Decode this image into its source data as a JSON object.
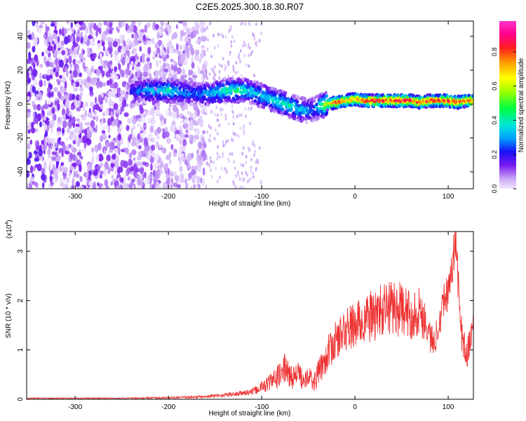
{
  "figure_title": "C2E5.2025.300.18.30.R07",
  "chart_data": [
    {
      "type": "heatmap",
      "title": "C2E5.2025.300.18.30.R07",
      "xlabel": "Height of straight line (km)",
      "ylabel": "Frequency (Hz)",
      "xlim": [
        -352,
        127
      ],
      "ylim": [
        -50,
        49
      ],
      "xticks": [
        -300,
        -200,
        -100,
        0,
        100
      ],
      "yticks": [
        -40,
        -20,
        0,
        20,
        40
      ],
      "colorbar": {
        "label": "Normalized spectral amplitude",
        "range": [
          0.0,
          0.98
        ],
        "ticks": [
          0.0,
          0.2,
          0.4,
          0.6,
          0.8
        ],
        "colors": [
          "#f2e8ff",
          "#c9a6f5",
          "#7a19f0",
          "#1a10f5",
          "#00a0ff",
          "#00e6d8",
          "#00ff40",
          "#9fff00",
          "#ffff00",
          "#ffa000",
          "#ff2020",
          "#ff0088",
          "#ff33cc"
        ]
      },
      "noise_region": {
        "x": [
          -352,
          -160
        ],
        "y": [
          -50,
          49
        ]
      },
      "sparse_region": {
        "x": [
          -160,
          -100
        ],
        "y": [
          -50,
          49
        ]
      },
      "ridge": {
        "description": "Center frequency of main spectral ridge",
        "x": [
          -240,
          -225,
          -210,
          -200,
          -185,
          -170,
          -160,
          -150,
          -140,
          -130,
          -120,
          -110,
          -100,
          -90,
          -80,
          -70,
          -60,
          -50,
          -45,
          -40,
          -30,
          -20,
          -10,
          0,
          10,
          20,
          30,
          40,
          50,
          60,
          70,
          80,
          90,
          100,
          110,
          120,
          127
        ],
        "y": [
          7,
          8,
          8,
          8,
          7,
          6,
          6,
          7,
          8,
          8,
          8,
          7,
          5,
          3,
          1,
          -1,
          -3,
          -4,
          -3,
          -2,
          0,
          1,
          2,
          3,
          2,
          2,
          2,
          2,
          2,
          2,
          1,
          2,
          2,
          2,
          1,
          2,
          2
        ],
        "peak_amplitude": [
          0.25,
          0.35,
          0.4,
          0.45,
          0.35,
          0.3,
          0.35,
          0.4,
          0.45,
          0.5,
          0.45,
          0.4,
          0.4,
          0.4,
          0.45,
          0.45,
          0.4,
          0.35,
          0.3,
          0.4,
          0.7,
          0.85,
          0.8,
          0.8,
          0.85,
          0.9,
          0.9,
          0.9,
          0.95,
          0.9,
          0.85,
          0.9,
          0.85,
          0.9,
          0.9,
          0.85,
          0.85
        ]
      }
    },
    {
      "type": "line",
      "xlabel": "Height of straight line (km)",
      "ylabel": "SNR (10 * v/v)",
      "y_multiplier": "(x10⁴)",
      "y_multiplier_base": "(x10",
      "y_multiplier_exp": "4",
      "xlim": [
        -352,
        127
      ],
      "ylim": [
        0,
        3.4
      ],
      "xticks": [
        -300,
        -200,
        -100,
        0,
        100
      ],
      "yticks": [
        0,
        1,
        2,
        3
      ],
      "color": "#ee3333",
      "series": [
        {
          "name": "SNR",
          "x": [
            -352,
            -300,
            -250,
            -200,
            -160,
            -150,
            -130,
            -110,
            -100,
            -90,
            -80,
            -75,
            -70,
            -60,
            -55,
            -50,
            -45,
            -40,
            -35,
            -30,
            -20,
            -10,
            0,
            10,
            20,
            30,
            40,
            50,
            60,
            70,
            75,
            80,
            85,
            90,
            95,
            100,
            105,
            108,
            110,
            115,
            120,
            125,
            127
          ],
          "y": [
            0.02,
            0.02,
            0.02,
            0.03,
            0.05,
            0.07,
            0.1,
            0.15,
            0.25,
            0.35,
            0.5,
            0.65,
            0.45,
            0.5,
            0.4,
            0.55,
            0.3,
            0.5,
            0.7,
            0.9,
            1.2,
            1.4,
            1.5,
            1.6,
            1.7,
            1.8,
            1.9,
            1.8,
            1.7,
            1.8,
            1.6,
            1.3,
            1.1,
            1.6,
            2.0,
            2.2,
            2.8,
            3.3,
            2.5,
            1.2,
            0.9,
            1.3,
            1.6
          ],
          "noise_amplitude": [
            0.01,
            0.01,
            0.01,
            0.02,
            0.03,
            0.04,
            0.05,
            0.07,
            0.12,
            0.2,
            0.25,
            0.3,
            0.25,
            0.25,
            0.22,
            0.25,
            0.2,
            0.25,
            0.3,
            0.35,
            0.4,
            0.45,
            0.5,
            0.5,
            0.55,
            0.55,
            0.6,
            0.55,
            0.5,
            0.5,
            0.45,
            0.35,
            0.3,
            0.35,
            0.4,
            0.4,
            0.45,
            0.4,
            0.45,
            0.35,
            0.3,
            0.3,
            0.3
          ]
        }
      ]
    }
  ]
}
